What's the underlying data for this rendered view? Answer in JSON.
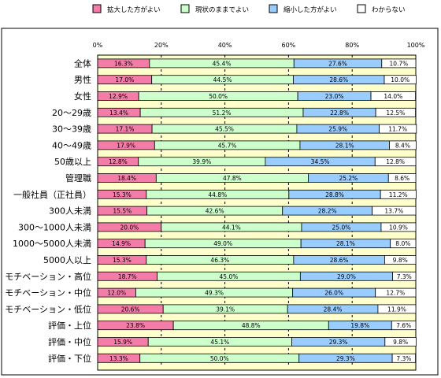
{
  "chart_data": {
    "type": "bar",
    "stacked": true,
    "orientation": "horizontal",
    "xlim": [
      0,
      100
    ],
    "x_ticks": [
      "0%",
      "20%",
      "40%",
      "60%",
      "80%",
      "100%"
    ],
    "legend_position": "top",
    "grid": "dashed vertical lines at 20% intervals",
    "categories": [
      "全体",
      "男性",
      "女性",
      "20～29歳",
      "30～39歳",
      "40～49歳",
      "50歳以上",
      "管理職",
      "一般社員（正社員）",
      "300人未満",
      "300～1000人未満",
      "1000～5000人未満",
      "5000人以上",
      "モチベーション・高位",
      "モチベーション・中位",
      "モチベーション・低位",
      "評価・上位",
      "評価・中位",
      "評価・下位"
    ],
    "series": [
      {
        "name": "拡大した方がよい",
        "color": "#f47ca8",
        "values": [
          16.3,
          17.0,
          12.9,
          13.4,
          17.1,
          17.9,
          12.8,
          18.4,
          15.3,
          15.5,
          20.0,
          14.9,
          15.3,
          18.7,
          12.0,
          20.6,
          23.8,
          15.9,
          13.3
        ],
        "labels": [
          "16.3%",
          "17.0%",
          "12.9%",
          "13.4%",
          "17.1%",
          "17.9%",
          "12.8%",
          "18.4%",
          "15.3%",
          "15.5%",
          "20.0%",
          "14.9%",
          "15.3%",
          "18.7%",
          "12.0%",
          "20.6%",
          "23.8%",
          "15.9%",
          "13.3%"
        ]
      },
      {
        "name": "現状のままでよい",
        "color": "#ccffcc",
        "values": [
          45.4,
          44.5,
          50.0,
          51.2,
          45.5,
          45.7,
          39.9,
          47.8,
          44.8,
          42.6,
          44.1,
          49.0,
          46.3,
          45.0,
          49.3,
          39.1,
          48.8,
          45.1,
          50.0
        ],
        "labels": [
          "45.4%",
          "44.5%",
          "50.0%",
          "51.2%",
          "45.5%",
          "45.7%",
          "39.9%",
          "47.8%",
          "44.8%",
          "42.6%",
          "44.1%",
          "49.0%",
          "46.3%",
          "45.0%",
          "49.3%",
          "39.1%",
          "48.8%",
          "45.1%",
          "50.0%"
        ]
      },
      {
        "name": "縮小した方がよい",
        "color": "#99ccff",
        "values": [
          27.6,
          28.6,
          23.0,
          22.8,
          25.9,
          28.1,
          34.5,
          25.2,
          28.8,
          28.2,
          25.0,
          28.1,
          28.6,
          29.0,
          26.0,
          28.4,
          19.8,
          29.3,
          29.3
        ],
        "labels": [
          "27.6%",
          "28.6%",
          "23.0%",
          "22.8%",
          "25.9%",
          "28.1%",
          "34.5%",
          "25.2%",
          "28.8%",
          "28.2%",
          "25.0%",
          "28.1%",
          "28.6%",
          "29.0%",
          "26.0%",
          "28.4%",
          "19.8%",
          "29.3%",
          "29.3%"
        ]
      },
      {
        "name": "わからない",
        "color": "#ffffff",
        "values": [
          10.7,
          10.0,
          14.0,
          12.5,
          11.7,
          8.4,
          12.8,
          8.6,
          11.2,
          13.7,
          10.9,
          8.0,
          9.8,
          7.3,
          12.7,
          11.9,
          7.6,
          9.8,
          7.3
        ],
        "labels": [
          "10.7%",
          "10.0%",
          "14.0%",
          "12.5%",
          "11.7%",
          "8.4%",
          "12.8%",
          "8.6%",
          "11.2%",
          "13.7%",
          "10.9%",
          "8.0%",
          "9.8%",
          "7.3%",
          "12.7%",
          "11.9%",
          "7.6%",
          "9.8%",
          "7.3%"
        ]
      }
    ]
  },
  "colors": {
    "plot_background": "#ffffcc",
    "bar_border": "#000000",
    "grid_line": "#000000"
  }
}
